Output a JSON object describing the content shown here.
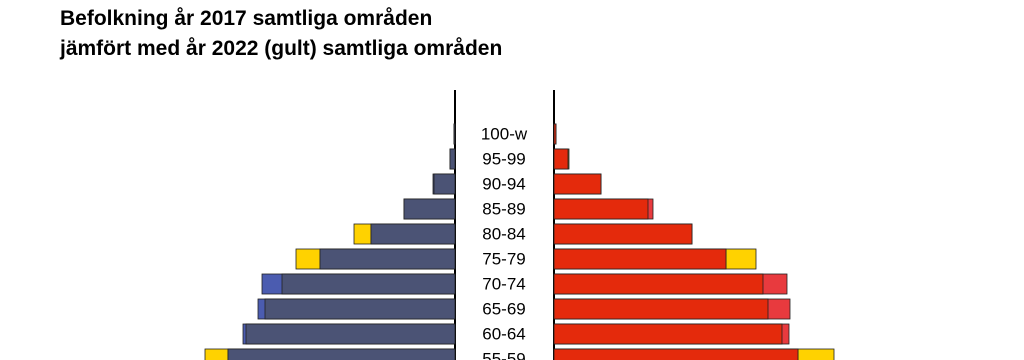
{
  "chart_data": {
    "type": "pyramid",
    "title": [
      "Befolkning år 2017 samtliga områden",
      "jämfört med år 2022 (gult) samtliga områden"
    ],
    "categories": [
      "100-w",
      "95-99",
      "90-94",
      "85-89",
      "80-84",
      "75-79",
      "70-74",
      "65-69",
      "60-64",
      "55-59"
    ],
    "series": [
      {
        "side": "left",
        "year_role": "base",
        "color": "#4b5cb0",
        "overlap_color": "#4b5375",
        "values": [
          1,
          5,
          22,
          51,
          84,
          135,
          193,
          197,
          212,
          227
        ]
      },
      {
        "side": "left",
        "year_role": "compare",
        "color": "#ffd200",
        "values": [
          1,
          5,
          21,
          51,
          101,
          159,
          173,
          190,
          209,
          250
        ]
      },
      {
        "side": "right",
        "year_role": "base",
        "color": "#e83a3e",
        "overlap_color": "#e42a0c",
        "values": [
          2,
          14,
          47,
          99,
          138,
          172,
          233,
          236,
          235,
          244
        ]
      },
      {
        "side": "right",
        "year_role": "compare",
        "color": "#ffd200",
        "values": [
          2,
          15,
          47,
          94,
          138,
          202,
          209,
          214,
          228,
          280
        ]
      }
    ]
  }
}
